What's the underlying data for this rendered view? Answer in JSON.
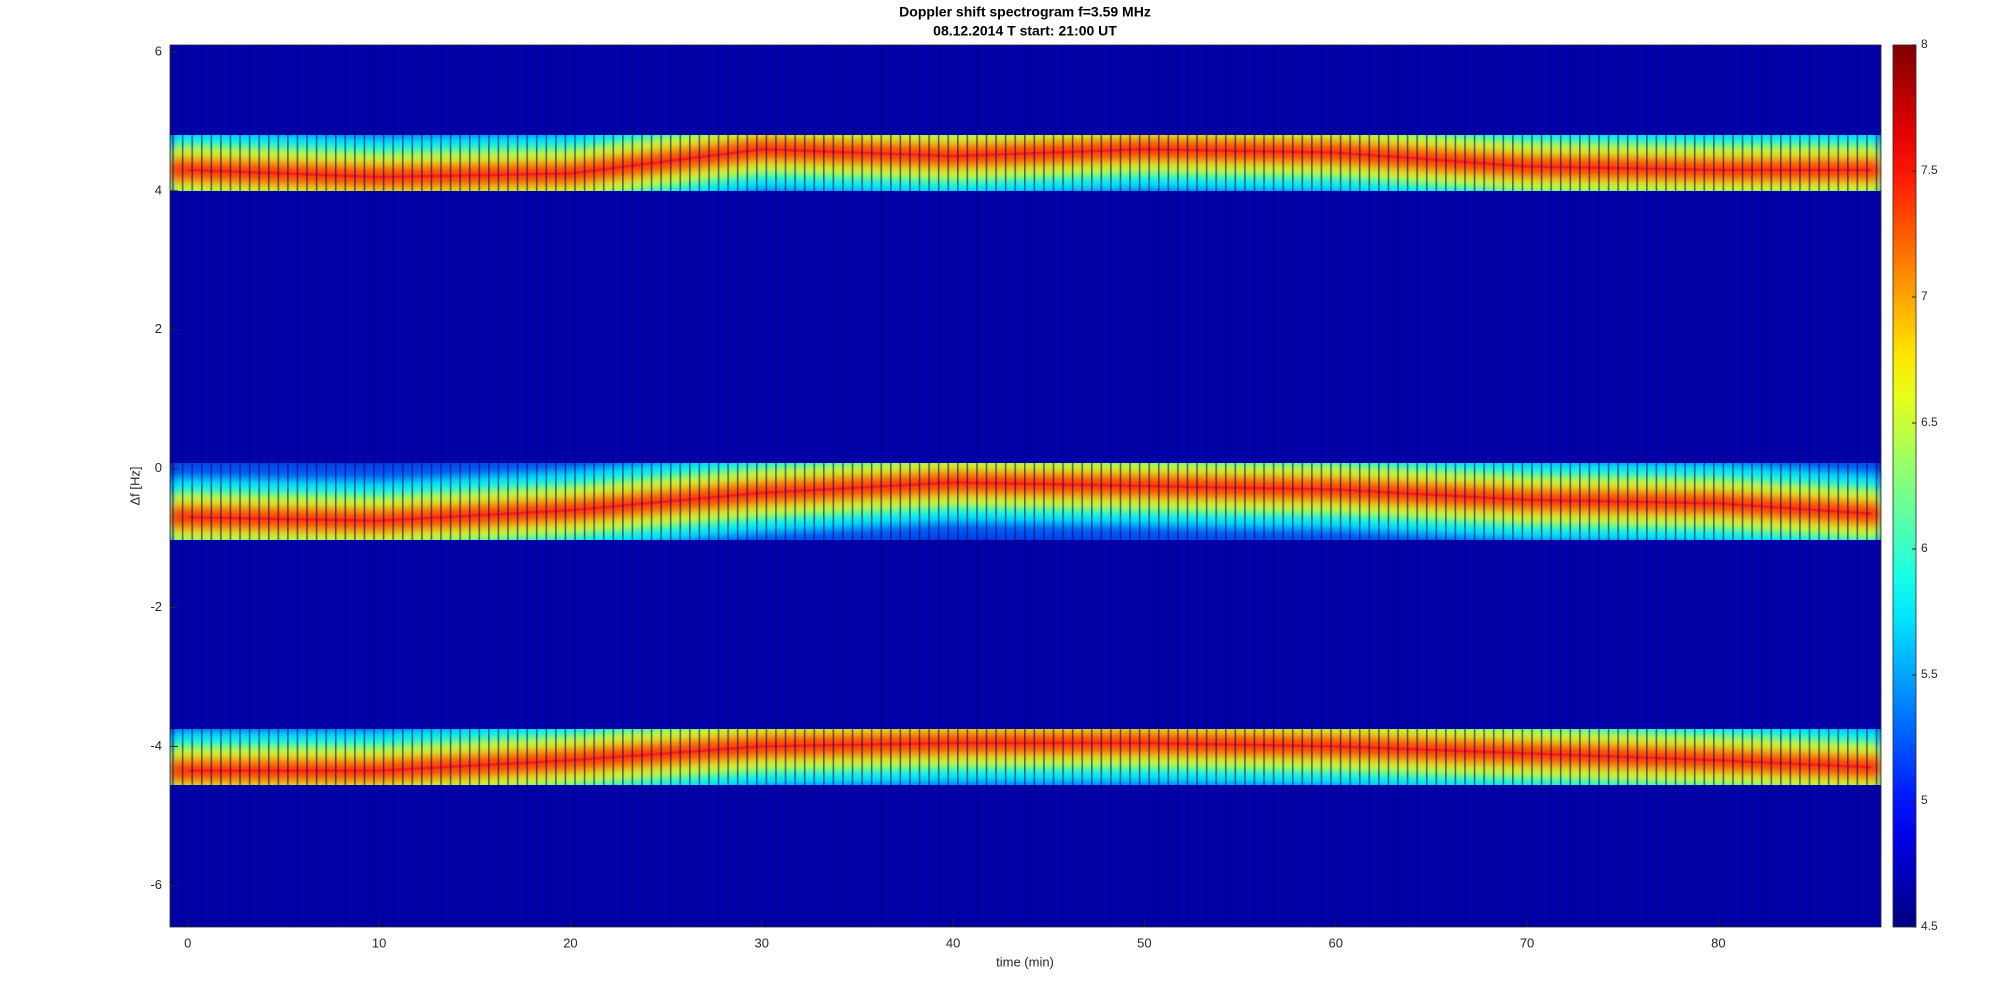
{
  "chart_data": {
    "type": "spectrogram",
    "title": "Doppler shift spectrogram f=3.59 MHz",
    "subtitle": "08.12.2014   T start: 21:00 UT",
    "xlabel": "time (min)",
    "ylabel": "Δf [Hz]",
    "x": [
      0,
      10,
      20,
      30,
      40,
      50,
      60,
      70,
      80,
      88
    ],
    "series": [
      {
        "color": "#ff1a1a",
        "values": [
          4.3,
          4.2,
          4.25,
          4.6,
          4.5,
          4.6,
          4.55,
          4.35,
          4.3,
          4.3
        ]
      },
      {
        "color": "#ff1a1a",
        "values": [
          -0.7,
          -0.75,
          -0.6,
          -0.35,
          -0.2,
          -0.25,
          -0.3,
          -0.45,
          -0.5,
          -0.65
        ]
      },
      {
        "color": "#ff1a1a",
        "values": [
          -4.35,
          -4.35,
          -4.2,
          -4.0,
          -3.95,
          -3.95,
          -4.0,
          -4.1,
          -4.2,
          -4.3
        ]
      }
    ],
    "xlim": [
      -0.93,
      88.5
    ],
    "xticks": [
      0,
      10,
      20,
      30,
      40,
      50,
      60,
      70,
      80
    ],
    "ylim": [
      -6.6,
      6.1
    ],
    "yticks": [
      -6,
      -4,
      -2,
      0,
      2,
      4,
      6
    ],
    "colormap": "jet",
    "clim": [
      4.5,
      8
    ],
    "cticks": [
      4.5,
      5,
      5.5,
      6,
      6.5,
      7,
      7.5,
      8
    ]
  }
}
